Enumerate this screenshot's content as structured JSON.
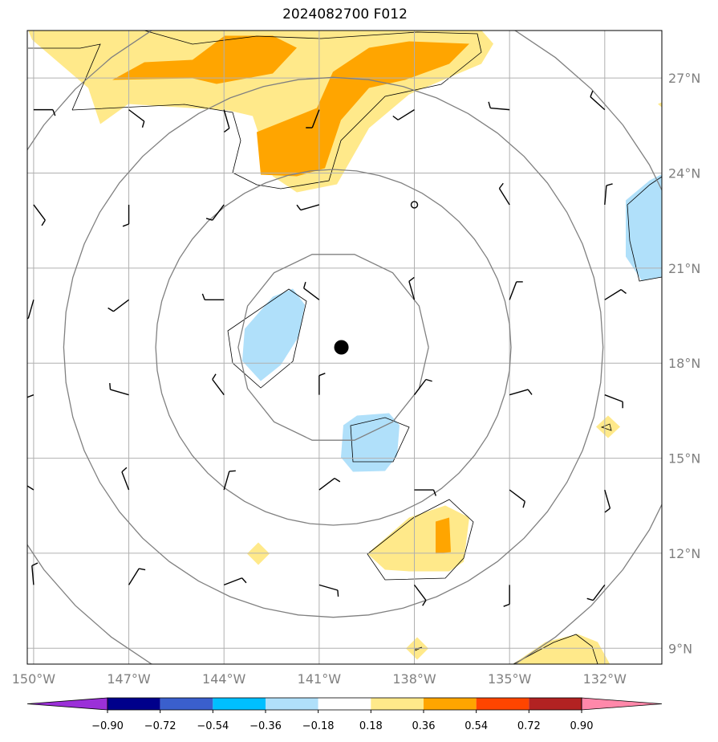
{
  "title": "2024082700 F012",
  "map": {
    "lon_range": [
      -150.2,
      -130.2
    ],
    "lat_range": [
      8.5,
      28.5
    ],
    "x_ticks": [
      {
        "lon": -150,
        "label": "150°W"
      },
      {
        "lon": -147,
        "label": "147°W"
      },
      {
        "lon": -144,
        "label": "144°W"
      },
      {
        "lon": -141,
        "label": "141°W"
      },
      {
        "lon": -138,
        "label": "138°W"
      },
      {
        "lon": -135,
        "label": "135°W"
      },
      {
        "lon": -132,
        "label": "132°W"
      }
    ],
    "y_ticks": [
      {
        "lat": 27,
        "label": "27°N"
      },
      {
        "lat": 24,
        "label": "24°N"
      },
      {
        "lat": 21,
        "label": "21°N"
      },
      {
        "lat": 18,
        "label": "18°N"
      },
      {
        "lat": 15,
        "label": "15°N"
      },
      {
        "lat": 12,
        "label": "12°N"
      },
      {
        "lat": 9,
        "label": "9°N"
      }
    ],
    "storm_center": {
      "lon": -140.3,
      "lat": 18.5
    },
    "range_rings_deg": [
      3.0,
      5.6,
      8.5,
      11.5
    ],
    "calm_marker": {
      "lon": -138.0,
      "lat": 23.0
    }
  },
  "colorbar": {
    "levels": [
      "−0.90",
      "−0.72",
      "−0.54",
      "−0.36",
      "−0.18",
      "0.18",
      "0.36",
      "0.54",
      "0.72",
      "0.90"
    ],
    "colors": [
      "#9b30d8",
      "#00008b",
      "#3a5fcd",
      "#00bfff",
      "#b0e0fa",
      "#ffffff",
      "#ffe98a",
      "#ffa500",
      "#ff4500",
      "#b22222",
      "#ff88aa"
    ]
  },
  "shading_colors": {
    "light_yellow": "#ffe98a",
    "orange": "#ffa500",
    "light_blue": "#b0e0fa",
    "cyan": "#00bfff"
  }
}
